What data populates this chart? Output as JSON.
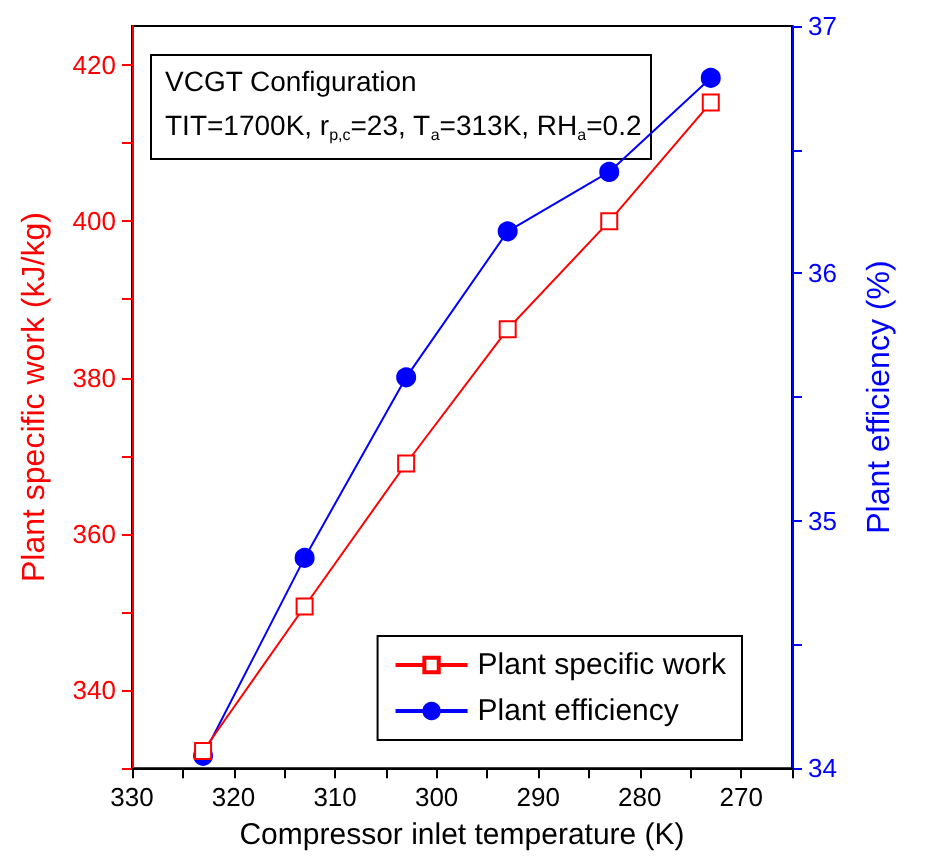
{
  "chart_data": {
    "type": "line",
    "xlabel": "Compressor inlet temperature (K)",
    "ylabel": "Plant specific work (kJ/kg)",
    "y2label": "Plant efficiency (%)",
    "annotations": [
      "VCGT Configuration",
      "TIT=1700K, r$_{p,c}$=23, T$_{a}$=313K, RH$_{a}$=0.2"
    ],
    "x": [
      323,
      313,
      303,
      293,
      283,
      273
    ],
    "series": [
      {
        "name": "Plant specific work",
        "color": "#ff0000",
        "marker": "square",
        "values": [
          332.2,
          350.7,
          369.0,
          386.2,
          400.0,
          415.2
        ]
      },
      {
        "name": "Plant efficiency",
        "color": "#0000ff",
        "marker": "circle",
        "axis": "y2",
        "values": [
          34.05,
          34.85,
          35.58,
          36.17,
          36.41,
          36.79
        ]
      }
    ],
    "xlim": [
      330,
      265
    ],
    "xticks": [
      330,
      {
        "value": 325,
        "label": null
      },
      320,
      {
        "value": 315,
        "label": null
      },
      310,
      {
        "value": 305,
        "label": null
      },
      300,
      {
        "value": 295,
        "label": null
      },
      290,
      {
        "value": 285,
        "label": null
      },
      280,
      {
        "value": 275,
        "label": null
      },
      270,
      {
        "value": 265,
        "label": null
      }
    ],
    "ylim": [
      330,
      425
    ],
    "yticks": [
      {
        "value": 330,
        "label": null
      },
      340,
      {
        "value": 350,
        "label": null
      },
      360,
      {
        "value": 370,
        "label": null
      },
      380,
      {
        "value": 390,
        "label": null
      },
      400,
      {
        "value": 410,
        "label": null
      },
      420
    ],
    "y2lim": [
      34,
      37
    ],
    "y2ticks": [
      34,
      {
        "value": 34.5,
        "label": null
      },
      35,
      {
        "value": 35.5,
        "label": null
      },
      36,
      {
        "value": 36.5,
        "label": null
      },
      37
    ],
    "legend": "bottom right",
    "grid": false,
    "line_style": "solid"
  }
}
